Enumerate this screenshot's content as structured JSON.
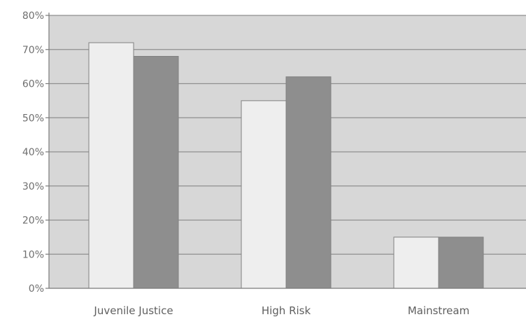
{
  "chart_data": {
    "type": "bar",
    "title": "",
    "xlabel": "",
    "ylabel": "",
    "categories": [
      "Juvenile Justice",
      "High Risk",
      "Mainstream"
    ],
    "series": [
      {
        "values": [
          72,
          55,
          15
        ]
      },
      {
        "values": [
          68,
          62,
          15
        ]
      }
    ],
    "ylim": [
      0,
      80
    ],
    "yticks": [
      0,
      10,
      20,
      30,
      40,
      50,
      60,
      70,
      80
    ],
    "y_tick_format": "{v}%",
    "grid": true,
    "legend": "none"
  },
  "colors": {
    "plot_background": "#d7d7d7",
    "gridline": "#8f8f8f",
    "axis": "#7a7a7a",
    "series_1": "#eeeeee",
    "series_2": "#8e8e8e",
    "bar_outline": "#808080"
  }
}
